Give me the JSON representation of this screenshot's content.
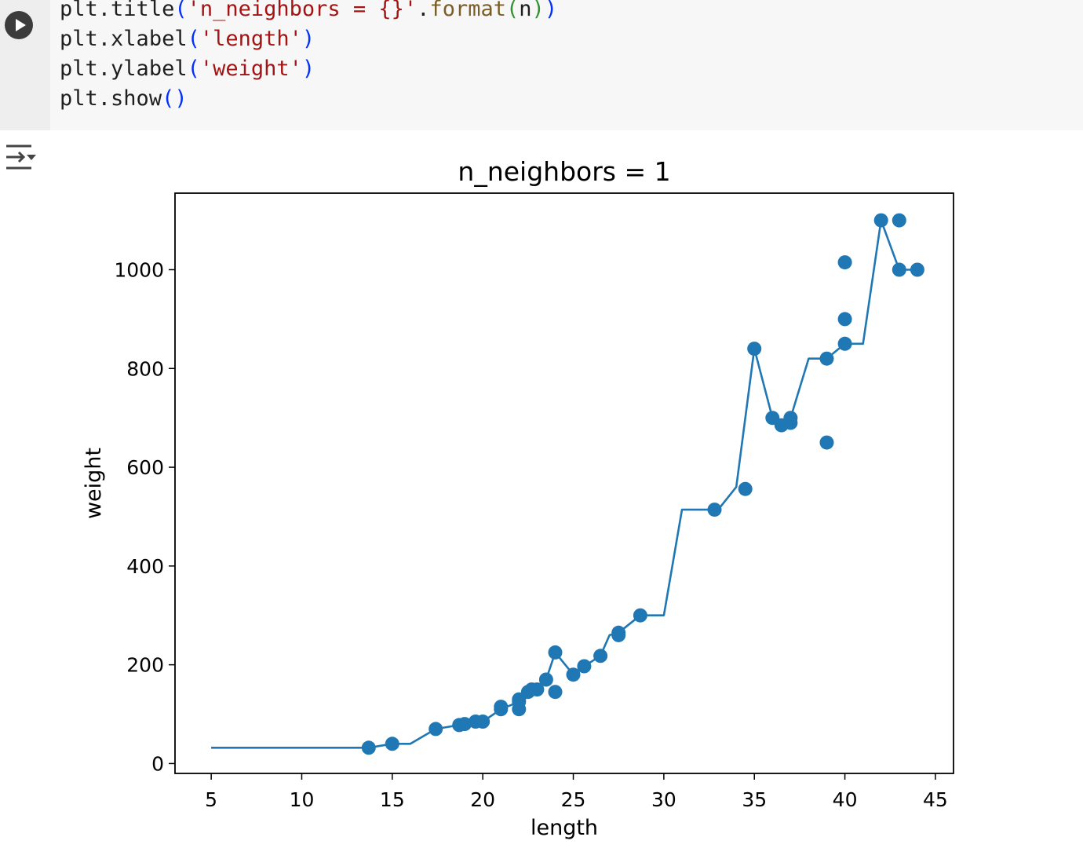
{
  "code_cell": {
    "lines": [
      [
        "plt",
        ".",
        "title",
        "(",
        "'n_neighbors = {}'",
        ".",
        "format",
        "(",
        "n",
        ")",
        ")"
      ],
      [
        "plt",
        ".",
        "xlabel",
        "(",
        "'length'",
        ")"
      ],
      [
        "plt",
        ".",
        "ylabel",
        "(",
        "'weight'",
        ")"
      ],
      [
        "plt",
        ".",
        "show",
        "(",
        ")"
      ]
    ]
  },
  "icons": {
    "run": "play-icon",
    "output_toggle": "collapse-output-icon"
  },
  "colors": {
    "series": "#1f77b4",
    "code_bg": "#f7f7f7",
    "gutter_bg": "#eeeeee"
  },
  "chart_data": {
    "type": "scatter",
    "title": "n_neighbors = 1",
    "xlabel": "length",
    "ylabel": "weight",
    "xlim": [
      3,
      46
    ],
    "ylim": [
      -20,
      1155
    ],
    "xticks": [
      5,
      10,
      15,
      20,
      25,
      30,
      35,
      40,
      45
    ],
    "yticks": [
      0,
      200,
      400,
      600,
      800,
      1000
    ],
    "grid": false,
    "legend": false,
    "series": [
      {
        "type": "scatter",
        "points": [
          [
            13.7,
            32
          ],
          [
            15.0,
            40
          ],
          [
            17.4,
            70
          ],
          [
            18.7,
            78
          ],
          [
            19.0,
            80
          ],
          [
            19.6,
            85
          ],
          [
            20.0,
            85
          ],
          [
            21.0,
            110
          ],
          [
            21.0,
            115
          ],
          [
            22.0,
            125
          ],
          [
            22.0,
            130
          ],
          [
            22.0,
            110
          ],
          [
            22.5,
            145
          ],
          [
            22.7,
            150
          ],
          [
            23.0,
            150
          ],
          [
            23.5,
            170
          ],
          [
            24.0,
            225
          ],
          [
            24.0,
            145
          ],
          [
            25.0,
            180
          ],
          [
            25.6,
            197
          ],
          [
            26.5,
            218
          ],
          [
            27.5,
            265
          ],
          [
            27.5,
            260
          ],
          [
            28.7,
            300
          ],
          [
            32.8,
            514
          ],
          [
            34.5,
            556
          ],
          [
            35.0,
            840
          ],
          [
            36.0,
            700
          ],
          [
            36.5,
            685
          ],
          [
            37.0,
            700
          ],
          [
            37.0,
            690
          ],
          [
            39.0,
            820
          ],
          [
            39.0,
            650
          ],
          [
            40.0,
            1015
          ],
          [
            40.0,
            900
          ],
          [
            40.0,
            850
          ],
          [
            42.0,
            1100
          ],
          [
            43.0,
            1100
          ],
          [
            43.0,
            1000
          ],
          [
            44.0,
            1000
          ]
        ]
      },
      {
        "type": "line",
        "points": [
          [
            5,
            32
          ],
          [
            13.7,
            32
          ],
          [
            15,
            40
          ],
          [
            16,
            40
          ],
          [
            17.4,
            70
          ],
          [
            18.7,
            78
          ],
          [
            19,
            80
          ],
          [
            19.6,
            85
          ],
          [
            20,
            85
          ],
          [
            21,
            110
          ],
          [
            22,
            125
          ],
          [
            22.5,
            145
          ],
          [
            23,
            150
          ],
          [
            23.5,
            170
          ],
          [
            24,
            225
          ],
          [
            25,
            180
          ],
          [
            25.6,
            197
          ],
          [
            26.5,
            218
          ],
          [
            27,
            260
          ],
          [
            27.5,
            265
          ],
          [
            28.7,
            300
          ],
          [
            30,
            300
          ],
          [
            31,
            514
          ],
          [
            33,
            514
          ],
          [
            34,
            560
          ],
          [
            35,
            840
          ],
          [
            36,
            700
          ],
          [
            36.5,
            685
          ],
          [
            37,
            700
          ],
          [
            38,
            820
          ],
          [
            39,
            820
          ],
          [
            40,
            850
          ],
          [
            41,
            850
          ],
          [
            42,
            1100
          ],
          [
            43,
            1000
          ],
          [
            44,
            1000
          ]
        ]
      }
    ]
  }
}
